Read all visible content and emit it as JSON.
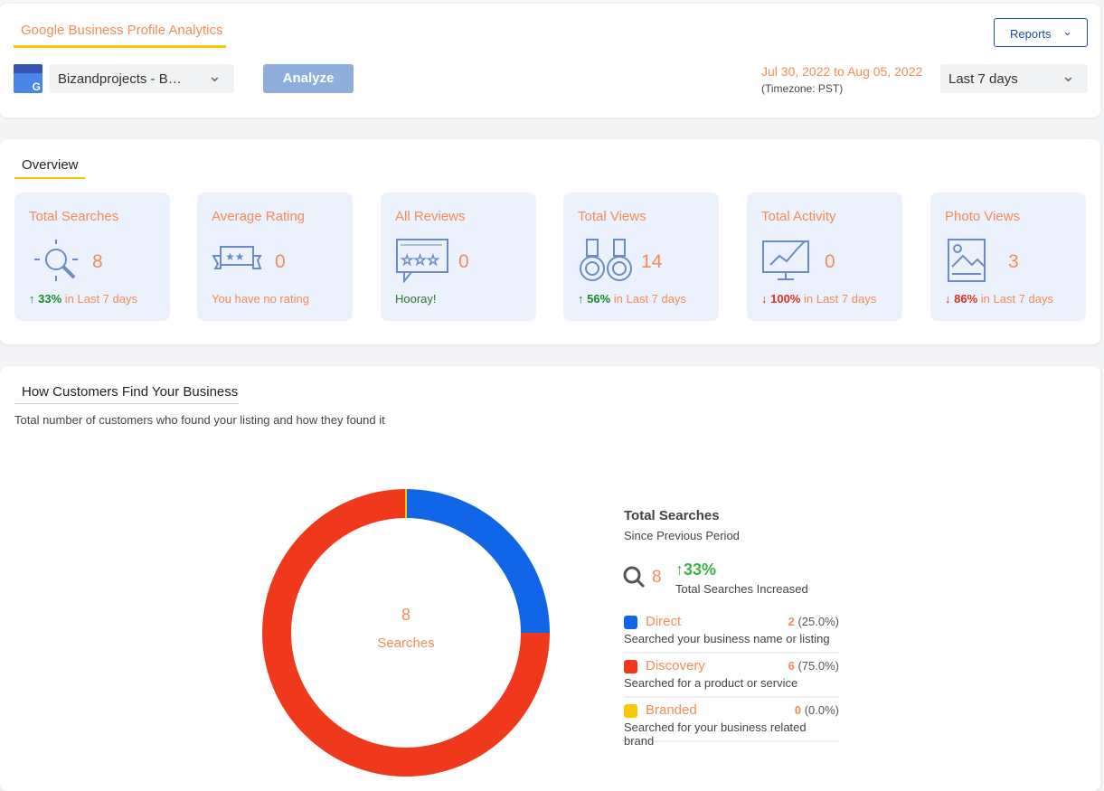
{
  "header": {
    "title": "Google Business Profile Analytics",
    "reports_label": "Reports",
    "business_select": "Bizandprojects - B…",
    "analyze_label": "Analyze",
    "date_range": "Jul 30, 2022 to Aug 05, 2022",
    "timezone": "(Timezone: PST)",
    "period_select": "Last 7 days"
  },
  "overview": {
    "title": "Overview",
    "cards": [
      {
        "title": "Total Searches",
        "value": "8",
        "change": "33%",
        "dir": "up",
        "suffix": " in Last 7 days"
      },
      {
        "title": "Average Rating",
        "value": "0",
        "note": "You have no rating"
      },
      {
        "title": "All Reviews",
        "value": "0",
        "note": "Hooray!"
      },
      {
        "title": "Total Views",
        "value": "14",
        "change": "56%",
        "dir": "up",
        "suffix": " in Last 7 days"
      },
      {
        "title": "Total Activity",
        "value": "0",
        "change": "100%",
        "dir": "down",
        "suffix": " in Last 7 days"
      },
      {
        "title": "Photo Views",
        "value": "3",
        "change": "86%",
        "dir": "down",
        "suffix": " in Last 7 days"
      }
    ]
  },
  "find": {
    "title": "How Customers Find Your Business",
    "subtitle": "Total number of customers who found your listing and how they found it",
    "center_value": "8",
    "center_label": "Searches",
    "summary_title": "Total Searches",
    "summary_sub": "Since Previous Period",
    "total": "8",
    "change": "33%",
    "change_label": "Total Searches Increased"
  },
  "chart_data": {
    "type": "pie",
    "title": "Searches",
    "total": 8,
    "series": [
      {
        "name": "Direct",
        "value": 2,
        "percent": "(25.0%)",
        "desc": "Searched your business name or listing",
        "color": "#1066e6"
      },
      {
        "name": "Discovery",
        "value": 6,
        "percent": "(75.0%)",
        "desc": "Searched for a product or service",
        "color": "#f0391c"
      },
      {
        "name": "Branded",
        "value": 0,
        "percent": "(0.0%)",
        "desc": "Searched for your business related brand",
        "color": "#f9c800"
      }
    ]
  }
}
